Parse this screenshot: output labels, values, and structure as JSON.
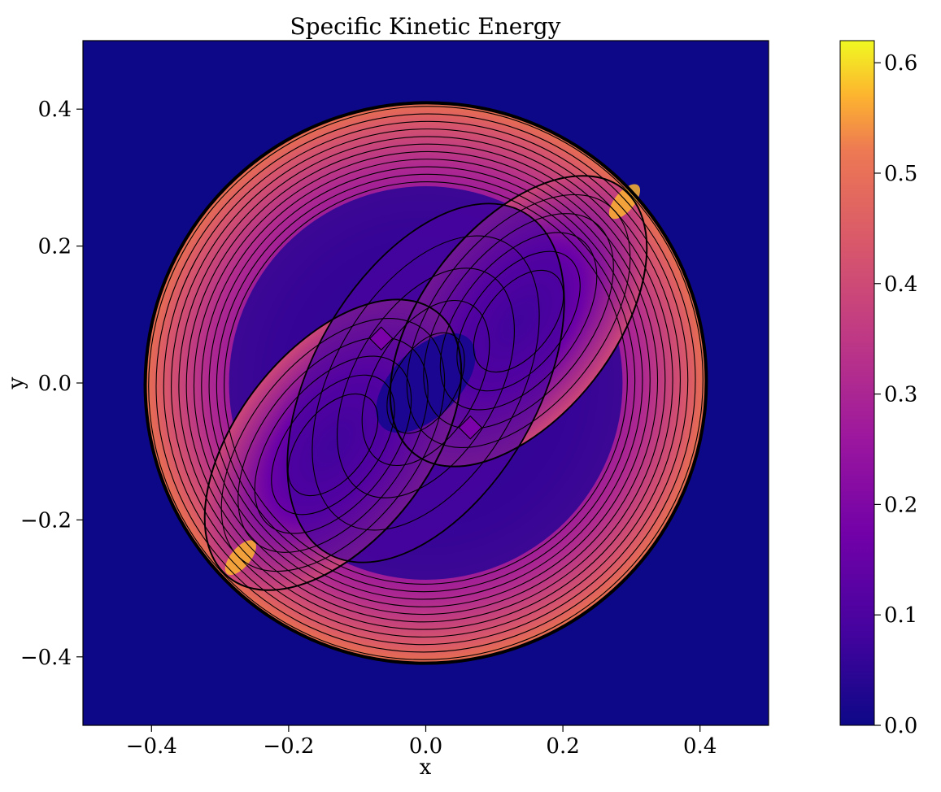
{
  "chart_data": {
    "type": "heatmap",
    "title": "Specific Kinetic Energy",
    "xlabel": "x",
    "ylabel": "y",
    "xlim": [
      -0.5,
      0.5
    ],
    "ylim": [
      -0.5,
      0.5
    ],
    "x_ticks": [
      -0.4,
      -0.2,
      0.0,
      0.2,
      0.4
    ],
    "x_tick_labels": [
      "−0.4",
      "−0.2",
      "0.0",
      "0.2",
      "0.4"
    ],
    "y_ticks": [
      -0.4,
      -0.2,
      0.0,
      0.2,
      0.4
    ],
    "y_tick_labels": [
      "−0.4",
      "−0.2",
      "0.0",
      "0.2",
      "0.4"
    ],
    "colormap": "plasma",
    "background_color": "#0d0887",
    "contour_color": "#000000",
    "outer_shock_radius": 0.41,
    "inner_lobe_tilt_deg": 40,
    "colorbar": {
      "range": [
        0.0,
        0.62
      ],
      "ticks": [
        0.0,
        0.1,
        0.2,
        0.3,
        0.4,
        0.5,
        0.6
      ],
      "tick_labels": [
        "0.0",
        "0.1",
        "0.2",
        "0.3",
        "0.4",
        "0.5",
        "0.6"
      ]
    }
  }
}
